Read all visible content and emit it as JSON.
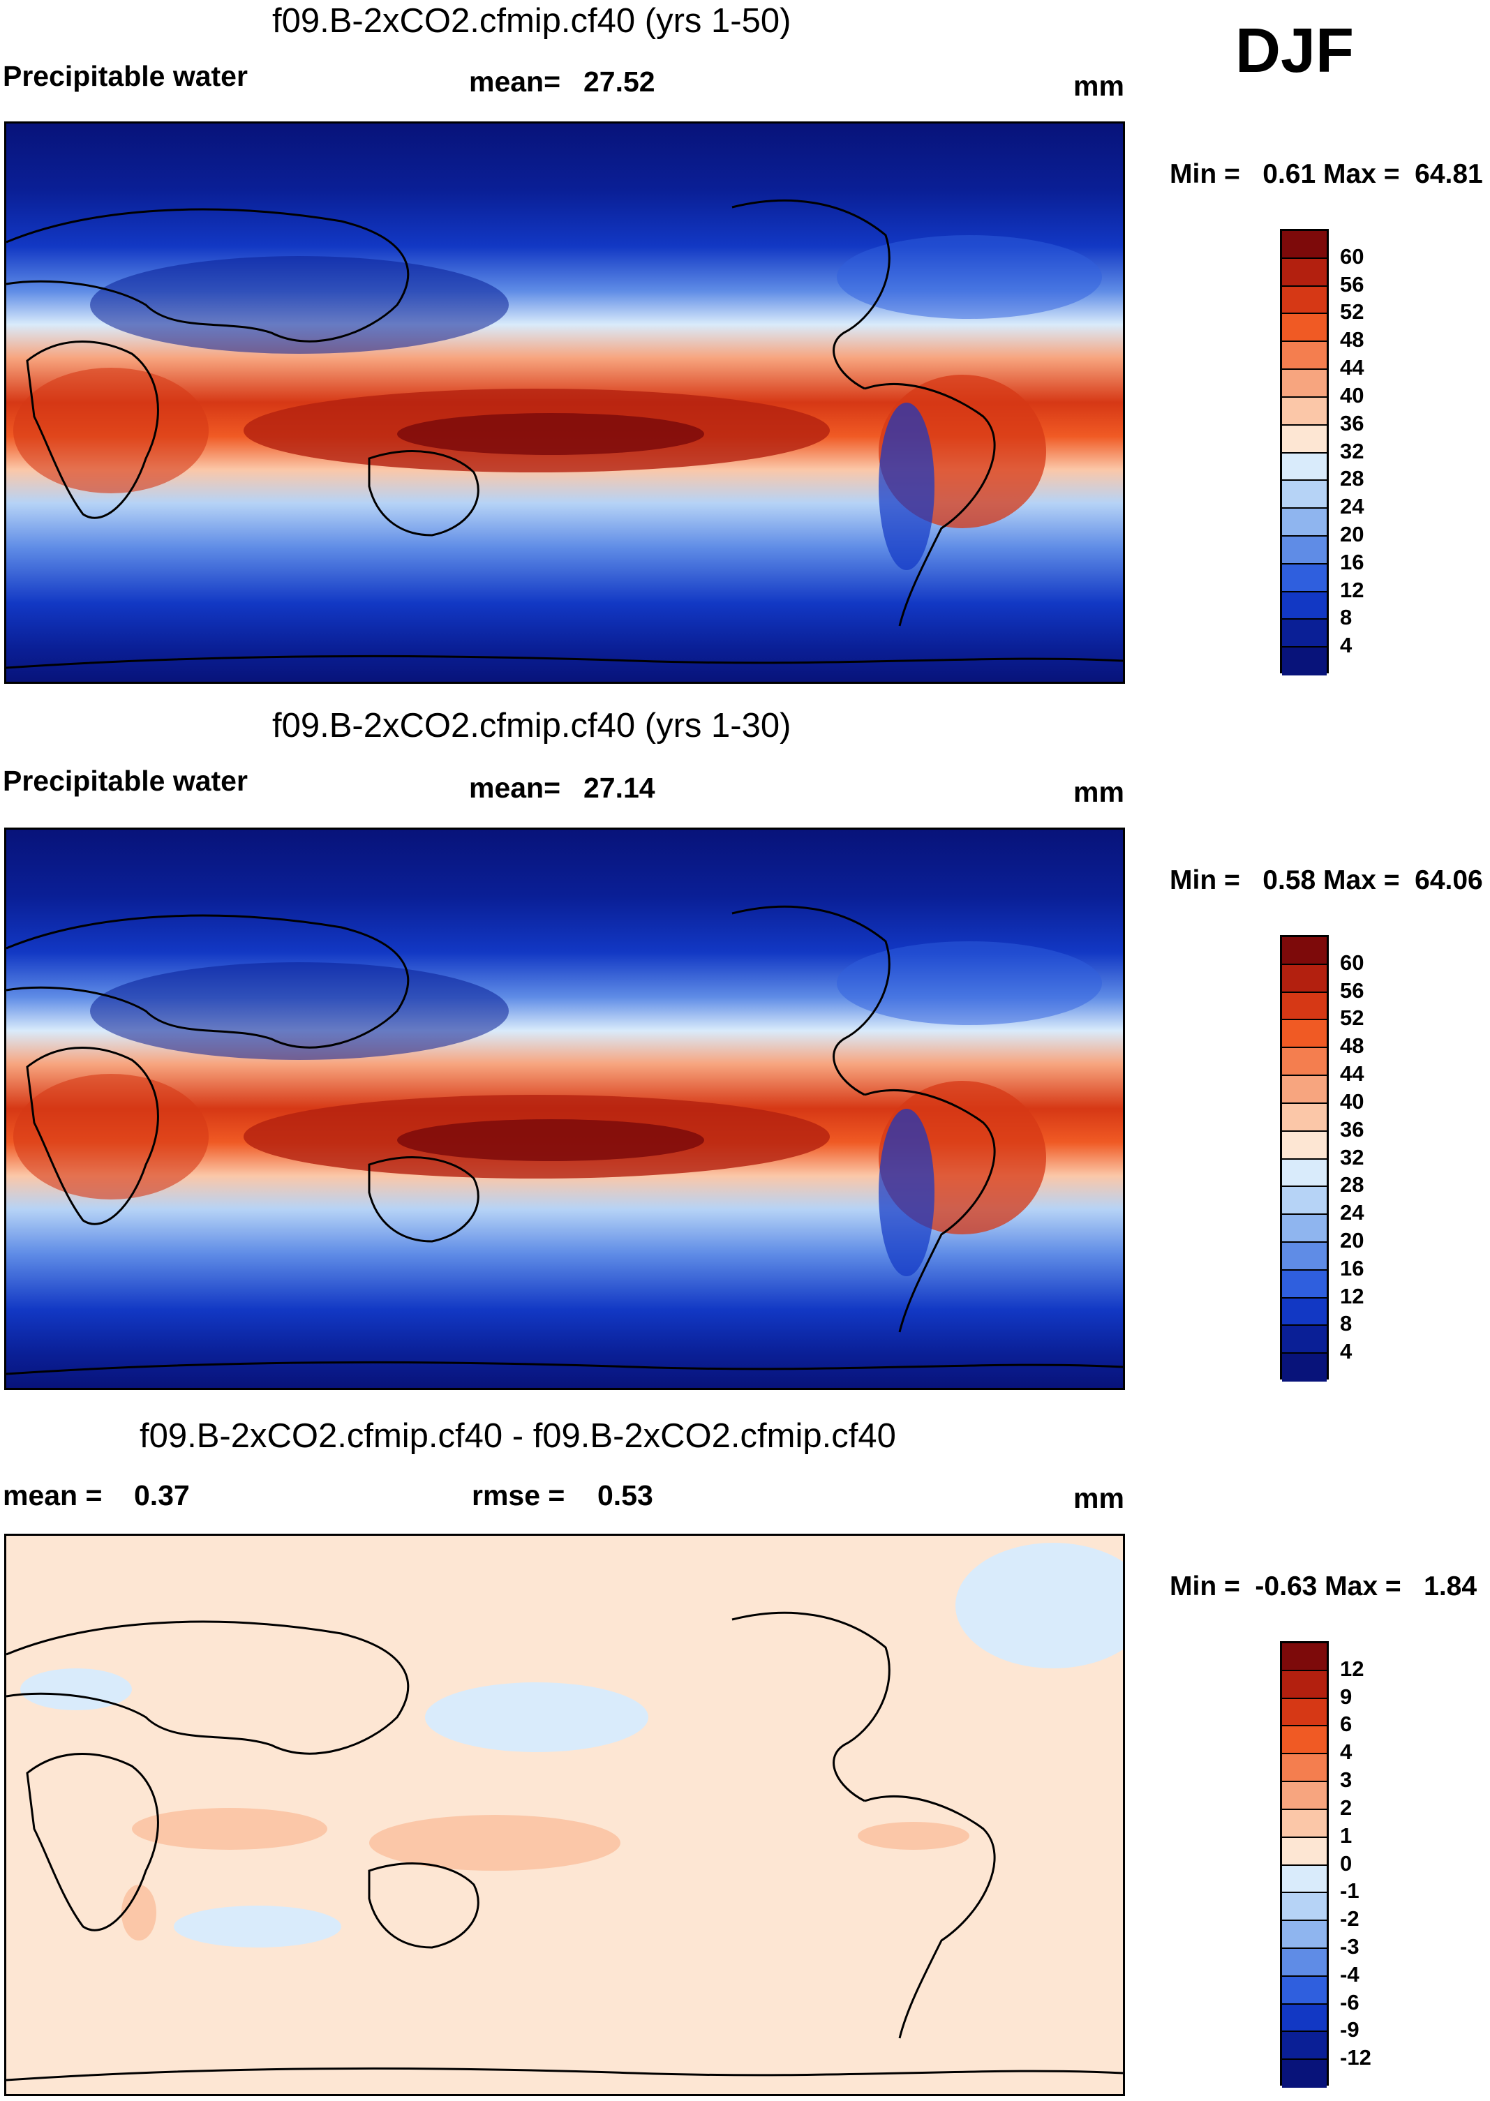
{
  "season": "DJF",
  "panels": [
    {
      "title": "f09.B-2xCO2.cfmip.cf40 (yrs 1-50)",
      "left_label": "Precipitable water",
      "stat_label": "mean=",
      "stat_value": "27.52",
      "units": "mm",
      "minmax_text": "Min =   0.61 Max =  64.81"
    },
    {
      "title": "f09.B-2xCO2.cfmip.cf40 (yrs 1-30)",
      "left_label": "Precipitable water",
      "stat_label": "mean=",
      "stat_value": "27.14",
      "units": "mm",
      "minmax_text": "Min =   0.58 Max =  64.06"
    },
    {
      "title": "f09.B-2xCO2.cfmip.cf40 - f09.B-2xCO2.cfmip.cf40",
      "left_label": "mean =",
      "left_value": "0.37",
      "stat_label": "rmse =",
      "stat_value": "0.53",
      "units": "mm",
      "minmax_text": "Min =  -0.63 Max =   1.84"
    }
  ],
  "legend_abs": {
    "labels": [
      "60",
      "56",
      "52",
      "48",
      "44",
      "40",
      "36",
      "32",
      "28",
      "24",
      "20",
      "16",
      "12",
      "8",
      "4"
    ],
    "colors": [
      "#7d0a0a",
      "#b3200f",
      "#d63815",
      "#f05a24",
      "#f47e4f",
      "#f7a57f",
      "#fbc7a8",
      "#fde6d3",
      "#d9ebfb",
      "#b6d3f6",
      "#8fb5ef",
      "#5f8ce6",
      "#2f5fde",
      "#1238c4",
      "#0a1f96",
      "#08137a"
    ]
  },
  "legend_diff": {
    "labels": [
      "12",
      "9",
      "6",
      "4",
      "3",
      "2",
      "1",
      "0",
      "-1",
      "-2",
      "-3",
      "-4",
      "-6",
      "-9",
      "-12"
    ],
    "colors": [
      "#7d0a0a",
      "#b3200f",
      "#d63815",
      "#f05a24",
      "#f47e4f",
      "#f7a57f",
      "#fbc7a8",
      "#fde6d3",
      "#d9ebfb",
      "#b6d3f6",
      "#8fb5ef",
      "#5f8ce6",
      "#2f5fde",
      "#1238c4",
      "#0a1f96",
      "#08137a"
    ]
  }
}
